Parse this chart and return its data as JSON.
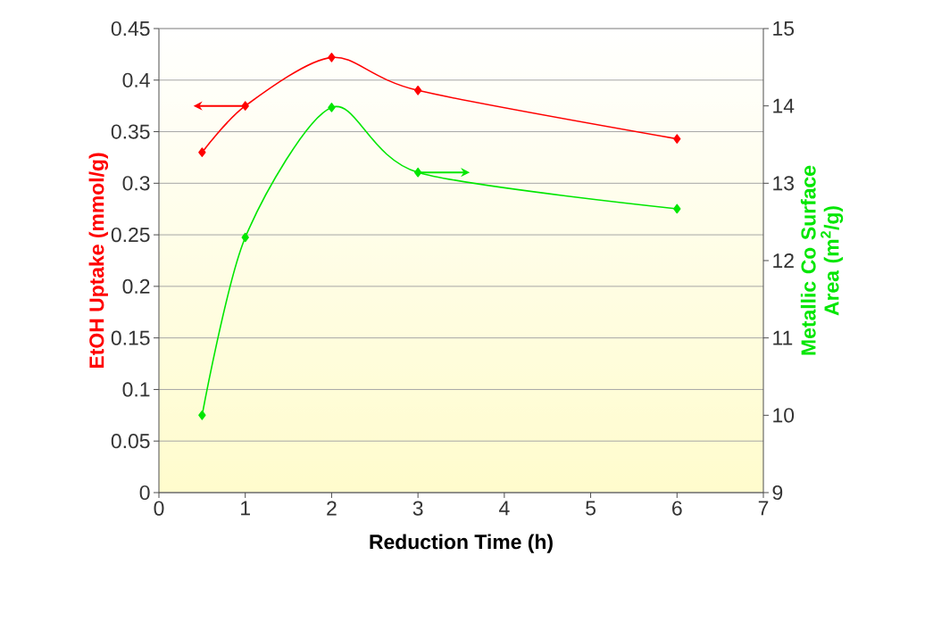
{
  "chart_data": {
    "type": "line",
    "xlabel": "Reduction Time (h)",
    "ylabel": "EtOH Uptake (mmol/g)",
    "y2label": "Metallic Co Surface Area (m$^{2}$/g)",
    "x": [
      0.5,
      1,
      2,
      3,
      6
    ],
    "series": [
      {
        "color": "#ff0000",
        "values": [
          0.33,
          0.375,
          0.422,
          0.39,
          0.343
        ]
      },
      {
        "color": "#00e600",
        "axis": "y2",
        "values": [
          10.0,
          12.3,
          13.98,
          13.14,
          12.67
        ]
      }
    ],
    "xlim": [
      0,
      7
    ],
    "xticks": [
      0,
      1,
      2,
      3,
      4,
      5,
      6,
      7
    ],
    "ylim": [
      0,
      0.45
    ],
    "yticks": [
      0,
      0.05,
      0.1,
      0.15,
      0.2,
      0.25,
      0.3,
      0.35,
      0.4,
      0.45
    ],
    "y2lim": [
      9,
      15
    ],
    "y2ticks": [
      9,
      10,
      11,
      12,
      13,
      14,
      15
    ],
    "grid": "y",
    "marker": "diamond",
    "line_style": "solid"
  }
}
